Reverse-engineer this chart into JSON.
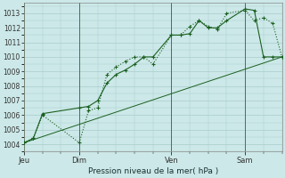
{
  "xlabel": "Pression niveau de la mer( hPa )",
  "bg_color": "#cce8e8",
  "grid_color": "#aacccc",
  "line_color": "#1a6020",
  "vline_color": "#336633",
  "ylim": [
    1003.5,
    1013.7
  ],
  "yticks": [
    1004,
    1005,
    1006,
    1007,
    1008,
    1009,
    1010,
    1011,
    1012,
    1013
  ],
  "xtick_labels": [
    "Jeu",
    "Dim",
    "Ven",
    "Sam"
  ],
  "xtick_positions": [
    0,
    24,
    64,
    96
  ],
  "xlim": [
    0,
    112
  ],
  "vline_positions": [
    0,
    24,
    64,
    96
  ],
  "line1_x": [
    0,
    4,
    8,
    24,
    28,
    32,
    36,
    40,
    44,
    48,
    52,
    56,
    64,
    68,
    72,
    76,
    80,
    84,
    88,
    96,
    100,
    104,
    108,
    112
  ],
  "line1_y": [
    1004.1,
    1004.4,
    1006.0,
    1004.1,
    1006.3,
    1006.5,
    1008.8,
    1009.3,
    1009.7,
    1010.0,
    1010.0,
    1009.5,
    1011.5,
    1011.5,
    1012.1,
    1012.5,
    1012.1,
    1011.9,
    1013.0,
    1013.2,
    1012.5,
    1012.7,
    1012.3,
    1010.0
  ],
  "line2_x": [
    0,
    4,
    8,
    24,
    28,
    32,
    36,
    40,
    44,
    48,
    52,
    56,
    64,
    68,
    72,
    76,
    80,
    84,
    88,
    96,
    100,
    104,
    108,
    112
  ],
  "line2_y": [
    1004.1,
    1004.4,
    1006.1,
    1006.5,
    1006.6,
    1007.0,
    1008.2,
    1008.8,
    1009.1,
    1009.5,
    1010.0,
    1010.0,
    1011.5,
    1011.5,
    1011.6,
    1012.5,
    1012.0,
    1012.0,
    1012.5,
    1013.3,
    1013.2,
    1010.0,
    1010.0,
    1010.0
  ],
  "line3_x": [
    0,
    112
  ],
  "line3_y": [
    1004.1,
    1010.0
  ],
  "figsize": [
    3.2,
    2.0
  ],
  "dpi": 100
}
